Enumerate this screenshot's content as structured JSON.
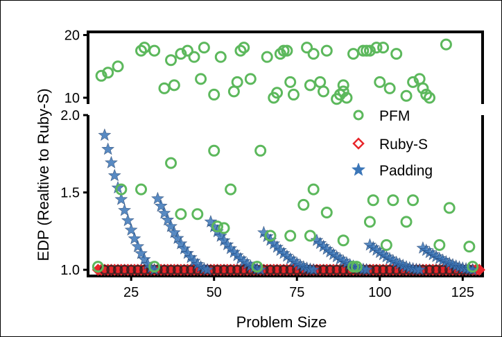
{
  "chart_data": {
    "type": "scatter",
    "xlabel": "Problem Size",
    "ylabel": "EDP (Realtive to Ruby-S)",
    "xlim": [
      12,
      131
    ],
    "x_ticks": [
      25,
      50,
      75,
      100,
      125
    ],
    "panels": [
      {
        "name": "upper",
        "ylim": [
          9,
          20.5
        ],
        "y_ticks": [
          10,
          20
        ]
      },
      {
        "name": "lower",
        "ylim": [
          0.96,
          2.0
        ],
        "y_ticks": [
          1.0,
          1.5,
          2.0
        ]
      }
    ],
    "axis_break": true,
    "grid": false,
    "legend_position": "right, below axis break",
    "series": [
      {
        "name": "PFM",
        "marker": "open-circle",
        "color": "#5cb85c",
        "points": [
          [
            16,
            13.5
          ],
          [
            18,
            14.0
          ],
          [
            21,
            15.0
          ],
          [
            28,
            17.5
          ],
          [
            29,
            18.0
          ],
          [
            32,
            17.5
          ],
          [
            35,
            11.5
          ],
          [
            37,
            16.0
          ],
          [
            38,
            12.0
          ],
          [
            40,
            17.0
          ],
          [
            42,
            17.5
          ],
          [
            44,
            16.5
          ],
          [
            46,
            13.0
          ],
          [
            47,
            18.0
          ],
          [
            50,
            10.5
          ],
          [
            52,
            16.5
          ],
          [
            56,
            11.0
          ],
          [
            57,
            12.5
          ],
          [
            58,
            17.5
          ],
          [
            59,
            18.0
          ],
          [
            61,
            13.0
          ],
          [
            66,
            16.5
          ],
          [
            68,
            10.0
          ],
          [
            69,
            10.8
          ],
          [
            70,
            17.0
          ],
          [
            71,
            17.5
          ],
          [
            72,
            17.5
          ],
          [
            73,
            12.5
          ],
          [
            74,
            10.5
          ],
          [
            78,
            18.0
          ],
          [
            79,
            12.0
          ],
          [
            80,
            17.0
          ],
          [
            82,
            12.5
          ],
          [
            83,
            11.0
          ],
          [
            84,
            17.5
          ],
          [
            87,
            9.8
          ],
          [
            88,
            10.5
          ],
          [
            89,
            12.0
          ],
          [
            89,
            11.0
          ],
          [
            90,
            10.0
          ],
          [
            92,
            17.0
          ],
          [
            95,
            17.5
          ],
          [
            96,
            17.5
          ],
          [
            97,
            17.5
          ],
          [
            99,
            18.0
          ],
          [
            100,
            12.5
          ],
          [
            101,
            18.0
          ],
          [
            103,
            11.5
          ],
          [
            105,
            17.0
          ],
          [
            108,
            10.3
          ],
          [
            110,
            12.5
          ],
          [
            112,
            13.0
          ],
          [
            113,
            11.5
          ],
          [
            114,
            10.5
          ],
          [
            115,
            10.0
          ],
          [
            120,
            18.5
          ],
          [
            15,
            1.02
          ],
          [
            22,
            1.52
          ],
          [
            28,
            1.52
          ],
          [
            32,
            1.02
          ],
          [
            37,
            1.69
          ],
          [
            40,
            1.36
          ],
          [
            45,
            1.36
          ],
          [
            50,
            1.77
          ],
          [
            51,
            1.28
          ],
          [
            53,
            1.27
          ],
          [
            55,
            1.52
          ],
          [
            63,
            1.02
          ],
          [
            64,
            1.77
          ],
          [
            67,
            1.22
          ],
          [
            73,
            1.22
          ],
          [
            77,
            1.42
          ],
          [
            79,
            1.22
          ],
          [
            80,
            1.52
          ],
          [
            84,
            1.37
          ],
          [
            89,
            1.19
          ],
          [
            92,
            1.02
          ],
          [
            93,
            1.02
          ],
          [
            97,
            1.31
          ],
          [
            98,
            1.45
          ],
          [
            102,
            1.16
          ],
          [
            104,
            1.45
          ],
          [
            108,
            1.31
          ],
          [
            110,
            1.45
          ],
          [
            118,
            1.16
          ],
          [
            121,
            1.4
          ],
          [
            127,
            1.15
          ],
          [
            128,
            1.02
          ]
        ]
      },
      {
        "name": "Ruby-S",
        "marker": "open-diamond",
        "color": "#e8262b",
        "points": [
          [
            15,
            1.0
          ],
          [
            130,
            1.0
          ]
        ]
      },
      {
        "name": "Padding",
        "marker": "star",
        "color": "#3b76b8",
        "segments": [
          {
            "x": [
              17,
              32
            ],
            "y_start": 1.87,
            "y_end": 1.0
          },
          {
            "x": [
              33,
              48
            ],
            "y_start": 1.46,
            "y_end": 1.0
          },
          {
            "x": [
              49,
              64
            ],
            "y_start": 1.31,
            "y_end": 1.0
          },
          {
            "x": [
              65,
              80
            ],
            "y_start": 1.24,
            "y_end": 1.0
          },
          {
            "x": [
              81,
              96
            ],
            "y_start": 1.19,
            "y_end": 1.0
          },
          {
            "x": [
              97,
              112
            ],
            "y_start": 1.16,
            "y_end": 1.0
          },
          {
            "x": [
              113,
              128
            ],
            "y_start": 1.14,
            "y_end": 1.0
          }
        ]
      }
    ]
  }
}
